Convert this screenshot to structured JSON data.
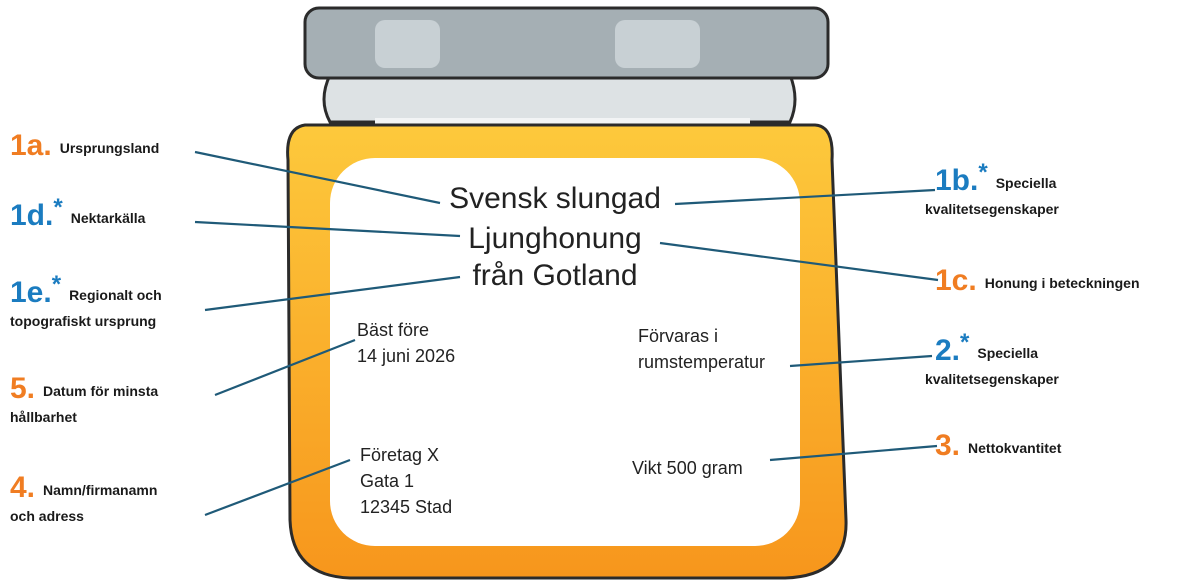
{
  "label": {
    "lines": [
      "Svensk slungad",
      "Ljunghonung",
      "från Gotland"
    ],
    "best_before": [
      "Bäst före",
      "14 juni 2026"
    ],
    "storage": [
      "Förvaras i",
      "rumstemperatur"
    ],
    "company": [
      "Företag X",
      "Gata 1",
      "12345 Stad"
    ],
    "net": "Vikt 500 gram"
  },
  "annotations": [
    {
      "number": "1a.",
      "text": [
        "Ursprungsland"
      ]
    },
    {
      "number": "1d.",
      "mark": "*",
      "text": [
        "Nektarkälla"
      ]
    },
    {
      "number": "1e.",
      "mark": "*",
      "text": [
        "Regionalt och",
        "topografiskt ursprung"
      ]
    },
    {
      "number": "5.",
      "text": [
        "Datum för minsta",
        "hållbarhet"
      ]
    },
    {
      "number": "4.",
      "text": [
        "Namn/firmanamn",
        "och adress"
      ]
    },
    {
      "number": "1b.",
      "mark": "*",
      "text": [
        "Speciella",
        "kvalitetsegenskaper"
      ]
    },
    {
      "number": "1c.",
      "text": [
        "Honung i beteckningen"
      ]
    },
    {
      "number": "2.",
      "mark": "*",
      "text": [
        "Speciella",
        "kvalitetsegenskaper"
      ]
    },
    {
      "number": "3.",
      "text": [
        "Nettokvantitet"
      ]
    }
  ]
}
